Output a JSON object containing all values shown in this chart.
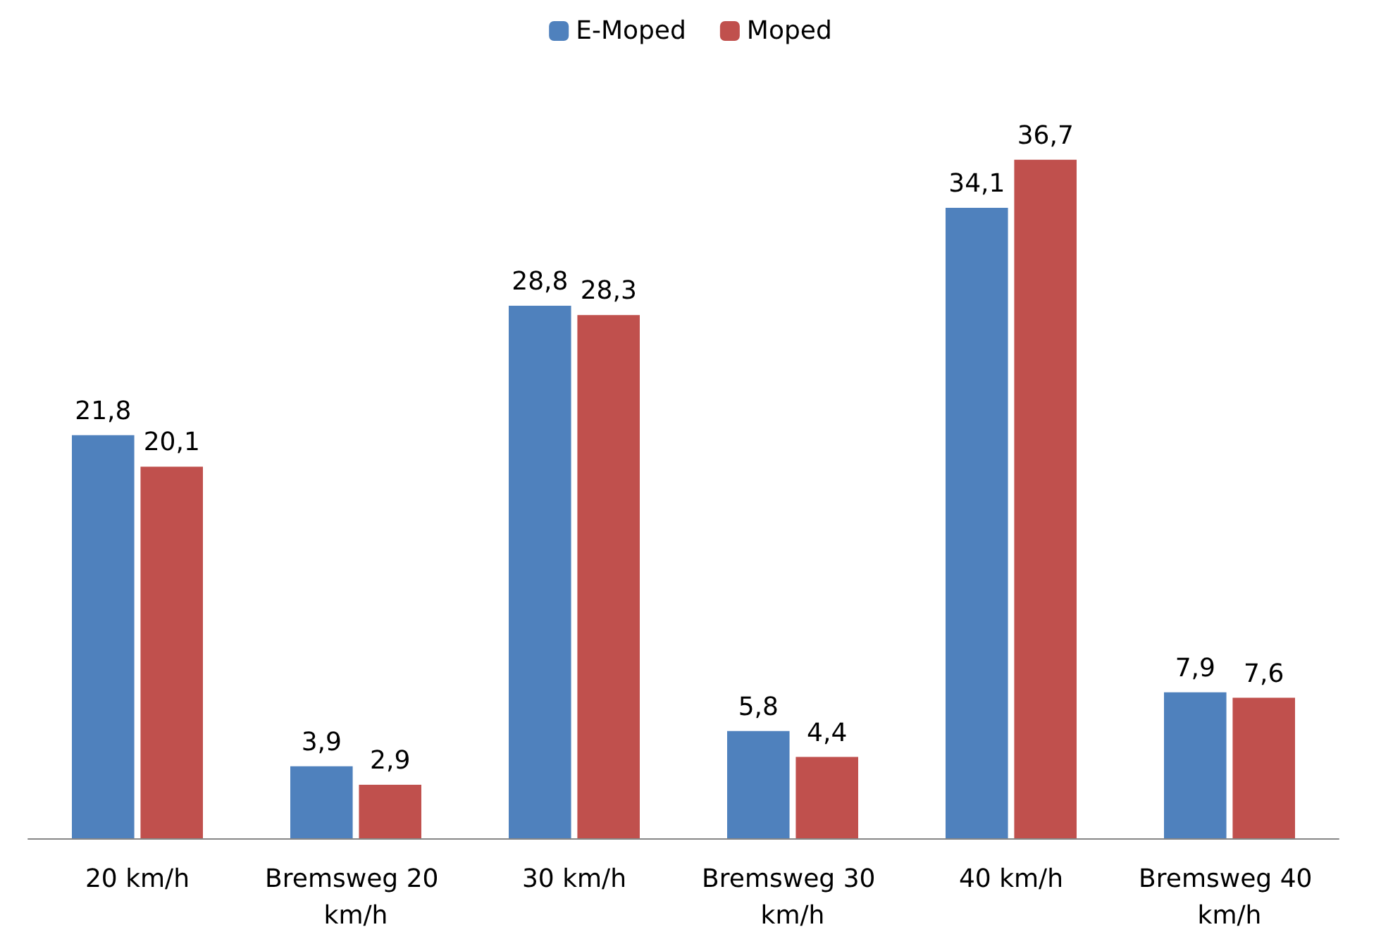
{
  "chart_data": {
    "type": "bar",
    "categories": [
      "20 km/h",
      "Bremsweg 20 km/h",
      "30 km/h",
      "Bremsweg 30 km/h",
      "40 km/h",
      "Bremsweg 40 km/h"
    ],
    "series": [
      {
        "name": "E-Moped",
        "color": "#4f81bd",
        "values": [
          21.8,
          3.9,
          28.8,
          5.8,
          34.1,
          7.9
        ],
        "value_labels": [
          "21,8",
          "3,9",
          "28,8",
          "5,8",
          "34,1",
          "7,9"
        ]
      },
      {
        "name": "Moped",
        "color": "#c0504d",
        "values": [
          20.1,
          2.9,
          28.3,
          4.4,
          36.7,
          7.6
        ],
        "value_labels": [
          "20,1",
          "2,9",
          "28,3",
          "4,4",
          "36,7",
          "7,6"
        ]
      }
    ],
    "legend": "top"
  }
}
